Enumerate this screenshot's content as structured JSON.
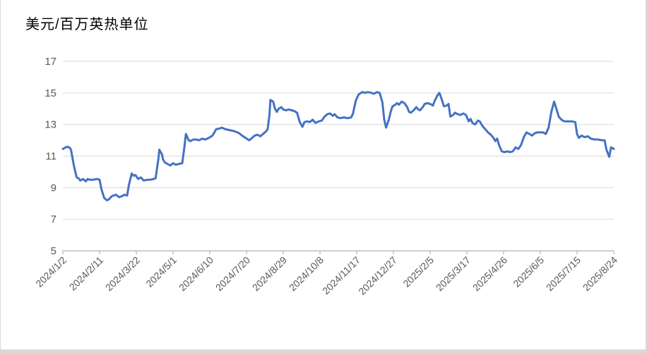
{
  "chart_data": {
    "type": "line",
    "title": "美元/百万英热单位",
    "xlabel": "",
    "ylabel": "",
    "ylim": [
      5,
      17
    ],
    "yticks": [
      5,
      7,
      9,
      11,
      13,
      15,
      17
    ],
    "grid": true,
    "legend": "none",
    "x_tick_labels": [
      "2024/1/2",
      "2024/2/11",
      "2024/3/22",
      "2024/5/1",
      "2024/6/10",
      "2024/7/20",
      "2024/8/29",
      "2024/10/8",
      "2024/11/17",
      "2024/12/27",
      "2025/2/5",
      "2025/3/17",
      "2025/4/26",
      "2025/6/5",
      "2025/7/15",
      "2025/8/24"
    ],
    "x_tick_days": [
      0,
      40,
      80,
      120,
      160,
      200,
      240,
      280,
      320,
      360,
      400,
      440,
      480,
      520,
      560,
      600
    ],
    "x_range_days": [
      0,
      600
    ],
    "series": [
      {
        "name": "美元/百万英热单位",
        "color": "#4472C4",
        "points": [
          [
            0,
            11.45
          ],
          [
            3,
            11.55
          ],
          [
            5,
            11.6
          ],
          [
            8,
            11.5
          ],
          [
            9,
            11.35
          ],
          [
            12,
            10.4
          ],
          [
            15,
            9.65
          ],
          [
            17,
            9.6
          ],
          [
            19,
            9.45
          ],
          [
            22,
            9.55
          ],
          [
            25,
            9.4
          ],
          [
            27,
            9.55
          ],
          [
            29,
            9.5
          ],
          [
            33,
            9.5
          ],
          [
            37,
            9.55
          ],
          [
            40,
            9.5
          ],
          [
            42,
            8.9
          ],
          [
            45,
            8.35
          ],
          [
            48,
            8.2
          ],
          [
            50,
            8.25
          ],
          [
            53,
            8.45
          ],
          [
            55,
            8.5
          ],
          [
            58,
            8.55
          ],
          [
            61,
            8.4
          ],
          [
            64,
            8.45
          ],
          [
            67,
            8.55
          ],
          [
            70,
            8.5
          ],
          [
            72,
            9.2
          ],
          [
            75,
            9.9
          ],
          [
            77,
            9.75
          ],
          [
            79,
            9.8
          ],
          [
            82,
            9.55
          ],
          [
            85,
            9.65
          ],
          [
            88,
            9.45
          ],
          [
            92,
            9.5
          ],
          [
            95,
            9.5
          ],
          [
            99,
            9.55
          ],
          [
            101,
            9.6
          ],
          [
            104,
            10.8
          ],
          [
            105,
            11.4
          ],
          [
            108,
            11.1
          ],
          [
            109,
            10.8
          ],
          [
            111,
            10.6
          ],
          [
            114,
            10.5
          ],
          [
            117,
            10.4
          ],
          [
            120,
            10.55
          ],
          [
            123,
            10.45
          ],
          [
            126,
            10.5
          ],
          [
            130,
            10.55
          ],
          [
            132,
            11.4
          ],
          [
            134,
            12.4
          ],
          [
            137,
            12.0
          ],
          [
            139,
            11.95
          ],
          [
            142,
            12.05
          ],
          [
            145,
            12.05
          ],
          [
            148,
            12.0
          ],
          [
            152,
            12.1
          ],
          [
            155,
            12.05
          ],
          [
            159,
            12.15
          ],
          [
            163,
            12.3
          ],
          [
            167,
            12.7
          ],
          [
            171,
            12.75
          ],
          [
            173,
            12.8
          ],
          [
            177,
            12.7
          ],
          [
            181,
            12.65
          ],
          [
            185,
            12.6
          ],
          [
            188,
            12.55
          ],
          [
            192,
            12.45
          ],
          [
            195,
            12.3
          ],
          [
            199,
            12.15
          ],
          [
            203,
            12.0
          ],
          [
            206,
            12.15
          ],
          [
            209,
            12.3
          ],
          [
            212,
            12.35
          ],
          [
            215,
            12.25
          ],
          [
            218,
            12.4
          ],
          [
            221,
            12.55
          ],
          [
            223,
            12.7
          ],
          [
            225,
            13.6
          ],
          [
            226,
            14.55
          ],
          [
            229,
            14.45
          ],
          [
            231,
            14.0
          ],
          [
            233,
            13.8
          ],
          [
            235,
            14.0
          ],
          [
            238,
            14.1
          ],
          [
            240,
            13.95
          ],
          [
            243,
            13.9
          ],
          [
            246,
            13.95
          ],
          [
            249,
            13.9
          ],
          [
            252,
            13.85
          ],
          [
            255,
            13.75
          ],
          [
            258,
            13.15
          ],
          [
            261,
            12.85
          ],
          [
            263,
            13.15
          ],
          [
            266,
            13.2
          ],
          [
            269,
            13.15
          ],
          [
            272,
            13.3
          ],
          [
            275,
            13.1
          ],
          [
            279,
            13.2
          ],
          [
            282,
            13.25
          ],
          [
            285,
            13.5
          ],
          [
            288,
            13.65
          ],
          [
            291,
            13.7
          ],
          [
            294,
            13.55
          ],
          [
            296,
            13.65
          ],
          [
            299,
            13.45
          ],
          [
            302,
            13.4
          ],
          [
            306,
            13.45
          ],
          [
            310,
            13.4
          ],
          [
            314,
            13.45
          ],
          [
            316,
            13.7
          ],
          [
            319,
            14.5
          ],
          [
            322,
            14.9
          ],
          [
            326,
            15.05
          ],
          [
            329,
            15.0
          ],
          [
            332,
            15.05
          ],
          [
            336,
            15.0
          ],
          [
            339,
            14.95
          ],
          [
            342,
            15.05
          ],
          [
            345,
            15.0
          ],
          [
            348,
            14.4
          ],
          [
            350,
            13.3
          ],
          [
            352,
            12.8
          ],
          [
            355,
            13.3
          ],
          [
            357,
            13.8
          ],
          [
            359,
            14.15
          ],
          [
            362,
            14.25
          ],
          [
            364,
            14.35
          ],
          [
            366,
            14.25
          ],
          [
            369,
            14.45
          ],
          [
            372,
            14.35
          ],
          [
            375,
            14.1
          ],
          [
            377,
            13.8
          ],
          [
            379,
            13.75
          ],
          [
            382,
            13.9
          ],
          [
            385,
            14.1
          ],
          [
            387,
            13.95
          ],
          [
            389,
            13.9
          ],
          [
            392,
            14.1
          ],
          [
            394,
            14.3
          ],
          [
            397,
            14.35
          ],
          [
            400,
            14.3
          ],
          [
            403,
            14.2
          ],
          [
            405,
            14.5
          ],
          [
            408,
            14.85
          ],
          [
            410,
            15.0
          ],
          [
            412,
            14.7
          ],
          [
            415,
            14.15
          ],
          [
            418,
            14.2
          ],
          [
            420,
            14.3
          ],
          [
            422,
            13.5
          ],
          [
            425,
            13.6
          ],
          [
            427,
            13.75
          ],
          [
            430,
            13.65
          ],
          [
            433,
            13.6
          ],
          [
            436,
            13.7
          ],
          [
            439,
            13.6
          ],
          [
            442,
            13.2
          ],
          [
            444,
            13.35
          ],
          [
            446,
            13.1
          ],
          [
            449,
            13.0
          ],
          [
            452,
            13.25
          ],
          [
            454,
            13.2
          ],
          [
            457,
            12.9
          ],
          [
            460,
            12.7
          ],
          [
            463,
            12.5
          ],
          [
            466,
            12.35
          ],
          [
            469,
            12.15
          ],
          [
            471,
            11.95
          ],
          [
            473,
            12.1
          ],
          [
            475,
            11.7
          ],
          [
            478,
            11.3
          ],
          [
            481,
            11.25
          ],
          [
            484,
            11.3
          ],
          [
            487,
            11.25
          ],
          [
            490,
            11.3
          ],
          [
            493,
            11.55
          ],
          [
            496,
            11.45
          ],
          [
            499,
            11.7
          ],
          [
            502,
            12.2
          ],
          [
            505,
            12.5
          ],
          [
            508,
            12.4
          ],
          [
            511,
            12.3
          ],
          [
            514,
            12.45
          ],
          [
            517,
            12.5
          ],
          [
            520,
            12.5
          ],
          [
            523,
            12.5
          ],
          [
            526,
            12.4
          ],
          [
            529,
            12.8
          ],
          [
            532,
            13.8
          ],
          [
            535,
            14.45
          ],
          [
            538,
            13.9
          ],
          [
            540,
            13.5
          ],
          [
            543,
            13.3
          ],
          [
            546,
            13.2
          ],
          [
            550,
            13.2
          ],
          [
            554,
            13.2
          ],
          [
            558,
            13.15
          ],
          [
            560,
            12.4
          ],
          [
            562,
            12.15
          ],
          [
            565,
            12.3
          ],
          [
            568,
            12.2
          ],
          [
            572,
            12.25
          ],
          [
            575,
            12.1
          ],
          [
            579,
            12.05
          ],
          [
            583,
            12.05
          ],
          [
            587,
            12.0
          ],
          [
            590,
            12.0
          ],
          [
            592,
            11.4
          ],
          [
            595,
            10.95
          ],
          [
            597,
            11.55
          ],
          [
            599,
            11.5
          ],
          [
            600,
            11.45
          ]
        ]
      }
    ]
  },
  "colors": {
    "line": "#4472C4",
    "gridline": "#D9D9D9",
    "axis": "#BFBFBF",
    "tick_label": "#595959",
    "title": "#000000",
    "background": "#FFFFFF",
    "frame_border": "#D9D9D9"
  }
}
